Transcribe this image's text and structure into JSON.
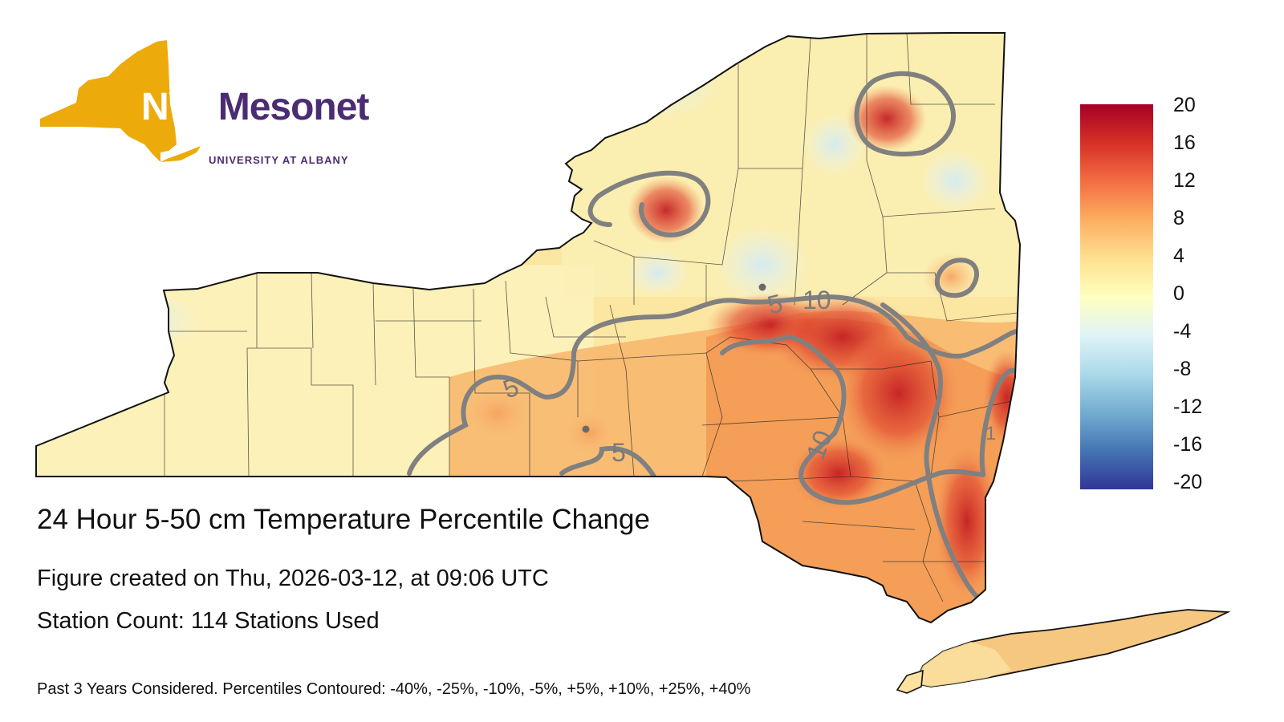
{
  "logo": {
    "state_abbrev": "NYS",
    "brand": "Mesonet",
    "institution": "UNIVERSITY AT ALBANY",
    "colors": {
      "state_gold": "#ecaa0b",
      "brand_purple": "#4b2c73"
    }
  },
  "figure": {
    "title": "24 Hour 5-50 cm Temperature Percentile Change",
    "created": "Figure created on Thu, 2026-03-12, at 09:06 UTC",
    "station_count": "Station Count: 114 Stations Used",
    "footnote": "Past 3 Years Considered. Percentiles Contoured: -40%, -25%, -10%, -5%, +5%, +10%, +25%, +40%"
  },
  "colorbar": {
    "ticks": [
      "20",
      "16",
      "12",
      "8",
      "4",
      "0",
      "-4",
      "-8",
      "-12",
      "-16",
      "-20"
    ],
    "colors": [
      "#313695",
      "#4575b4",
      "#74add1",
      "#abd9e9",
      "#e0f3f8",
      "#ffffbf",
      "#fee090",
      "#fdae61",
      "#f46d43",
      "#d73027",
      "#a50026"
    ]
  },
  "contours": {
    "labels": [
      "5",
      "10",
      "5",
      "5",
      "10",
      "1"
    ],
    "color": "#808080"
  }
}
